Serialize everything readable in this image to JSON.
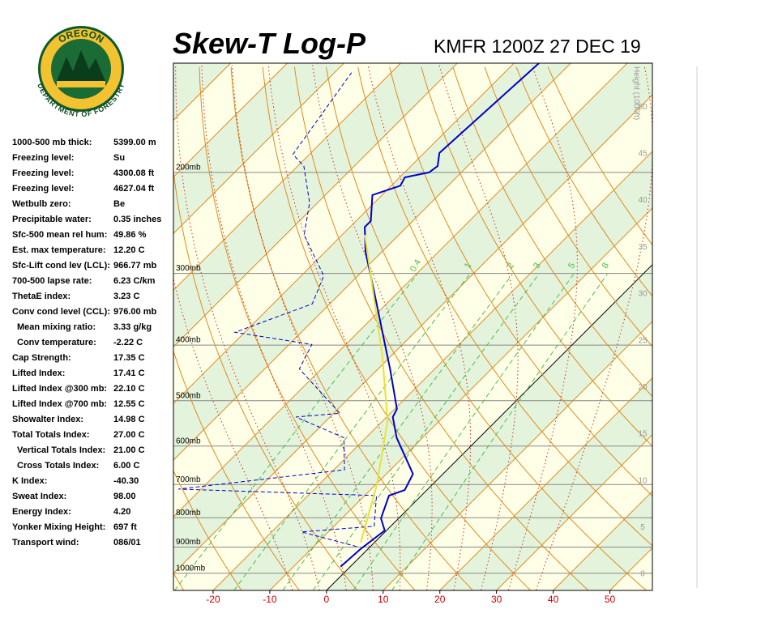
{
  "header": {
    "title": "Skew-T Log-P",
    "station": "KMFR 1200Z 27 DEC 19"
  },
  "logo": {
    "top": "OREGON",
    "bottom": "DEPARTMENT OF FORESTRY"
  },
  "indices": [
    {
      "label": "1000-500 mb thick:",
      "value": "5399.00 m"
    },
    {
      "label": "Freezing level:",
      "value": "Su"
    },
    {
      "label": "Freezing level:",
      "value": "4300.08 ft"
    },
    {
      "label": "Freezing level:",
      "value": "4627.04 ft"
    },
    {
      "label": "Wetbulb zero:",
      "value": "Be"
    },
    {
      "label": "Precipitable water:",
      "value": "0.35 inches"
    },
    {
      "label": "Sfc-500 mean rel hum:",
      "value": "49.86 %"
    },
    {
      "label": "Est. max temperature:",
      "value": "12.20 C"
    },
    {
      "label": "Sfc-Lift cond lev (LCL):",
      "value": "966.77 mb"
    },
    {
      "label": "700-500 lapse rate:",
      "value": "6.23 C/km"
    },
    {
      "label": "ThetaE index:",
      "value": "3.23 C"
    },
    {
      "label": "Conv cond level (CCL):",
      "value": "976.00 mb"
    },
    {
      "label": "Mean mixing ratio:",
      "value": "3.33 g/kg"
    },
    {
      "label": "Conv temperature:",
      "value": "-2.22 C"
    },
    {
      "label": "Cap Strength:",
      "value": "17.35 C"
    },
    {
      "label": "Lifted Index:",
      "value": "17.41 C"
    },
    {
      "label": "Lifted Index @300 mb:",
      "value": "22.10 C"
    },
    {
      "label": "Lifted Index @700 mb:",
      "value": "12.55 C"
    },
    {
      "label": "Showalter Index:",
      "value": "14.98 C"
    },
    {
      "label": "Total Totals Index:",
      "value": "27.00 C"
    },
    {
      "label": "Vertical Totals Index:",
      "value": "21.00 C"
    },
    {
      "label": "Cross Totals Index:",
      "value": "6.00 C"
    },
    {
      "label": "K Index:",
      "value": "-40.30"
    },
    {
      "label": "Sweat Index:",
      "value": "98.00"
    },
    {
      "label": "Energy Index:",
      "value": "4.20"
    },
    {
      "label": "Yonker Mixing Height:",
      "value": "697 ft"
    },
    {
      "label": "Transport wind:",
      "value": "086/01"
    }
  ],
  "chart_data": {
    "type": "skewt",
    "xlim": [
      -27,
      57.5
    ],
    "xticks": [
      -20,
      -10,
      0,
      10,
      20,
      30,
      40,
      50
    ],
    "ylim": [
      1071,
      129
    ],
    "log_scale": true,
    "yticks": [
      {
        "value": 200,
        "label": "200mb"
      },
      {
        "value": 300,
        "label": "300mb"
      },
      {
        "value": 400,
        "label": "400mb"
      },
      {
        "value": 500,
        "label": "500mb"
      },
      {
        "value": 600,
        "label": "600mb"
      },
      {
        "value": 700,
        "label": "700mb"
      },
      {
        "value": 800,
        "label": "800mb"
      },
      {
        "value": 900,
        "label": "900mb"
      },
      {
        "value": 1000,
        "label": "1000mb"
      }
    ],
    "y2label": "Height (1000ft)",
    "y2lim": [
      -1.73,
      54.7
    ],
    "y2ticks": [
      0,
      5,
      10,
      15,
      20,
      25,
      30,
      35,
      40,
      45,
      50
    ],
    "isotherms": [
      -120,
      -110,
      -100,
      -90,
      -80,
      -70,
      -60,
      -50,
      -40,
      -30,
      -20,
      -10,
      0,
      10,
      20,
      30,
      40,
      50
    ],
    "dry_adiabats": [
      -30,
      -20,
      -10,
      0,
      10,
      20,
      30,
      40,
      50,
      60,
      70,
      80,
      90,
      100,
      110,
      120
    ],
    "moist_adiabats": [
      -10,
      -5,
      0,
      5,
      10,
      15,
      20,
      25,
      30,
      35
    ],
    "mixing_ratios": [
      0.4,
      1,
      2,
      3,
      5,
      8
    ],
    "series": [
      {
        "color": "#0000cc",
        "dash": false,
        "pressure": [
          974,
          907,
          842,
          802,
          732,
          716,
          671,
          580,
          534,
          517,
          440,
          399,
          323,
          275,
          249,
          243,
          219,
          211,
          204,
          200,
          195,
          185,
          129
        ],
        "temperature": [
          -1.7,
          -1.3,
          -0.3,
          -3.1,
          -5.7,
          -3.9,
          -5.3,
          -14.6,
          -18.9,
          -19.6,
          -27.9,
          -33.1,
          -44.3,
          -52.9,
          -57.4,
          -57.4,
          -61.7,
          -58.4,
          -59.1,
          -55.7,
          -55.3,
          -57.3,
          -55.6
        ]
      },
      {
        "color": "#0000cc",
        "dash": true,
        "pressure": [
          898,
          847,
          828,
          732,
          713,
          660,
          580,
          534,
          526,
          440,
          399,
          380,
          339,
          303,
          257,
          226,
          195,
          186,
          134
        ],
        "temperature": [
          -2.4,
          -14.7,
          -2.9,
          -7.9,
          -44.0,
          -18.1,
          -23.9,
          -36.0,
          -28.9,
          -43.9,
          -46.0,
          -61.7,
          -53.1,
          -56.0,
          -66.7,
          -71.4,
          -78.9,
          -82.9,
          -87.0
        ]
      },
      {
        "color": "#e8e040",
        "dash": false,
        "pressure": [
          884,
          704,
          543,
          419,
          257
        ],
        "temperature": [
          -2.4,
          -9.6,
          -19.1,
          -31.4,
          -56.0
        ]
      }
    ]
  }
}
